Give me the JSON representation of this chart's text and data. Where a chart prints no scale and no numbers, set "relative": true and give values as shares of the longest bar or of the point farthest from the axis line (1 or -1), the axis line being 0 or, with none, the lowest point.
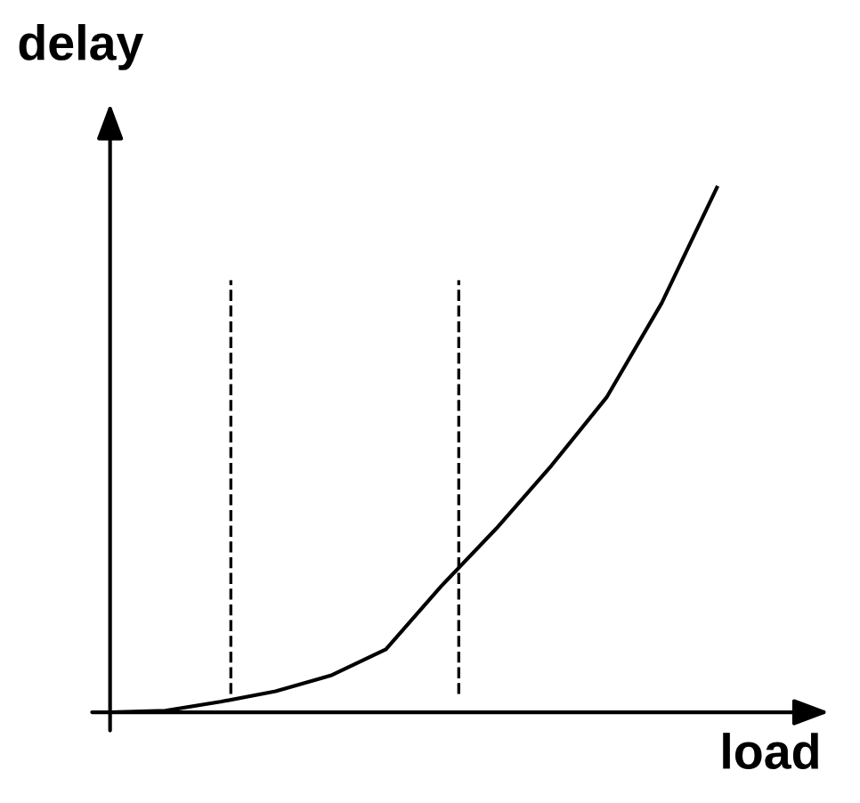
{
  "chart_data": {
    "type": "line",
    "relative": true,
    "xlabel": "load",
    "ylabel": "delay",
    "categories": [
      null,
      null,
      null,
      null,
      null,
      null,
      null,
      null,
      null,
      null,
      null,
      null
    ],
    "series": [
      {
        "color": "#000000",
        "values": [
          0,
          0.003,
          0.02,
          0.04,
          0.07,
          0.12,
          0.24,
          0.35,
          0.47,
          0.6,
          0.78,
          1
        ]
      }
    ],
    "legend": false,
    "marker": "none",
    "line_style": "solid"
  }
}
